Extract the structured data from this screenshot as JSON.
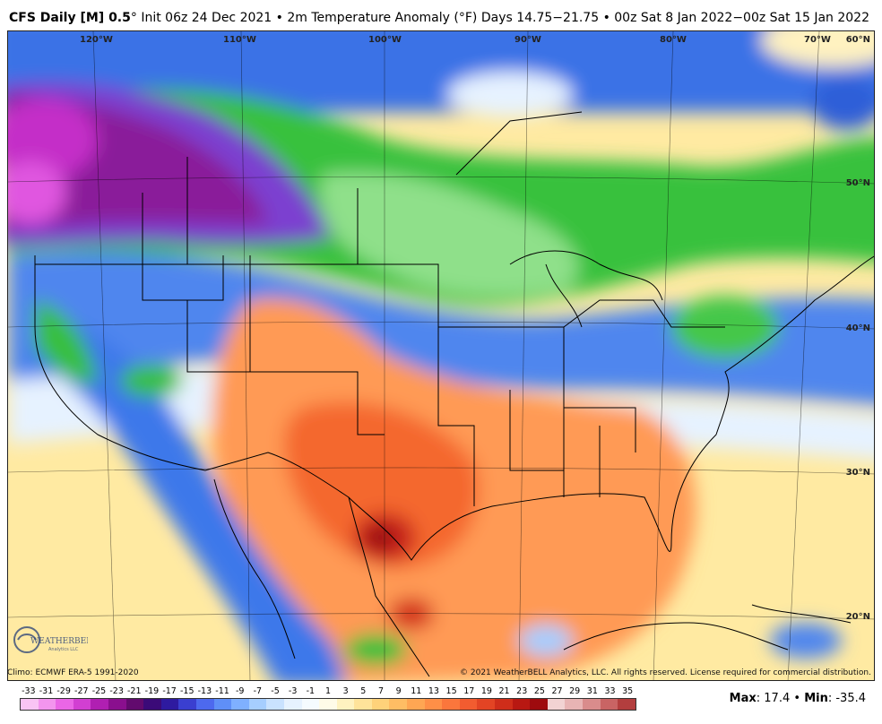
{
  "header": {
    "model": "CFS Daily [M] 0.5",
    "degree": "°",
    "init": "Init 06z 24 Dec 2021",
    "sep": "•",
    "field": "2m Temperature Anomaly (°F)",
    "right": "Days 14.75−21.75 • 00z Sat 8 Jan 2022−00z Sat 15 Jan 2022"
  },
  "longitude_labels": [
    "120°W",
    "110°W",
    "100°W",
    "90°W",
    "80°W",
    "70°W"
  ],
  "latitude_labels": [
    "60°N",
    "50°N",
    "40°N",
    "30°N",
    "20°N"
  ],
  "footer": {
    "climo": "Climo: ECMWF ERA-5 1991-2020",
    "copyright": "© 2021 WeatherBELL Analytics, LLC. All rights reserved. License required for commercial distribution.",
    "logo_text": "WEATHERBELL",
    "logo_sub": "Analytics LLC"
  },
  "stats": {
    "max_label": "Max",
    "max_value": "17.4",
    "sep": "•",
    "min_label": "Min",
    "min_value": "-35.4"
  },
  "colorbar": {
    "ticks": [
      "-33",
      "-31",
      "-29",
      "-27",
      "-25",
      "-23",
      "-21",
      "-19",
      "-17",
      "-15",
      "-13",
      "-11",
      "-9",
      "-7",
      "-5",
      "-3",
      "-1",
      "1",
      "3",
      "5",
      "7",
      "9",
      "11",
      "13",
      "15",
      "17",
      "19",
      "21",
      "23",
      "25",
      "27",
      "29",
      "31",
      "33",
      "35"
    ],
    "colors": [
      "#f9c4f4",
      "#f395ee",
      "#ea66e6",
      "#d23fd2",
      "#b01fb2",
      "#8a0f8e",
      "#620a6e",
      "#3b0a78",
      "#2e1aa0",
      "#3a3fd0",
      "#4d69ee",
      "#5f8ff7",
      "#7fb0ff",
      "#a6ceff",
      "#c9e2ff",
      "#e6f2ff",
      "#f5fbff",
      "#fffbe8",
      "#fff2c0",
      "#ffe39a",
      "#ffd27a",
      "#ffbd64",
      "#ffa653",
      "#ff8f47",
      "#fb763c",
      "#f25c30",
      "#e34424",
      "#cf2d1a",
      "#b81812",
      "#9e0b0e",
      "#f2d3d3",
      "#e8b4b4",
      "#d98c8c",
      "#c96464",
      "#b33e3e"
    ]
  },
  "colors": {
    "ocean_warm": "#ffeaa2",
    "land_warm": "#ff9c52",
    "hot_core": "#b0140c",
    "cold_core": "#6a0d6e",
    "green_band": "#3fc83f",
    "blue_band": "#2f6fe8"
  }
}
